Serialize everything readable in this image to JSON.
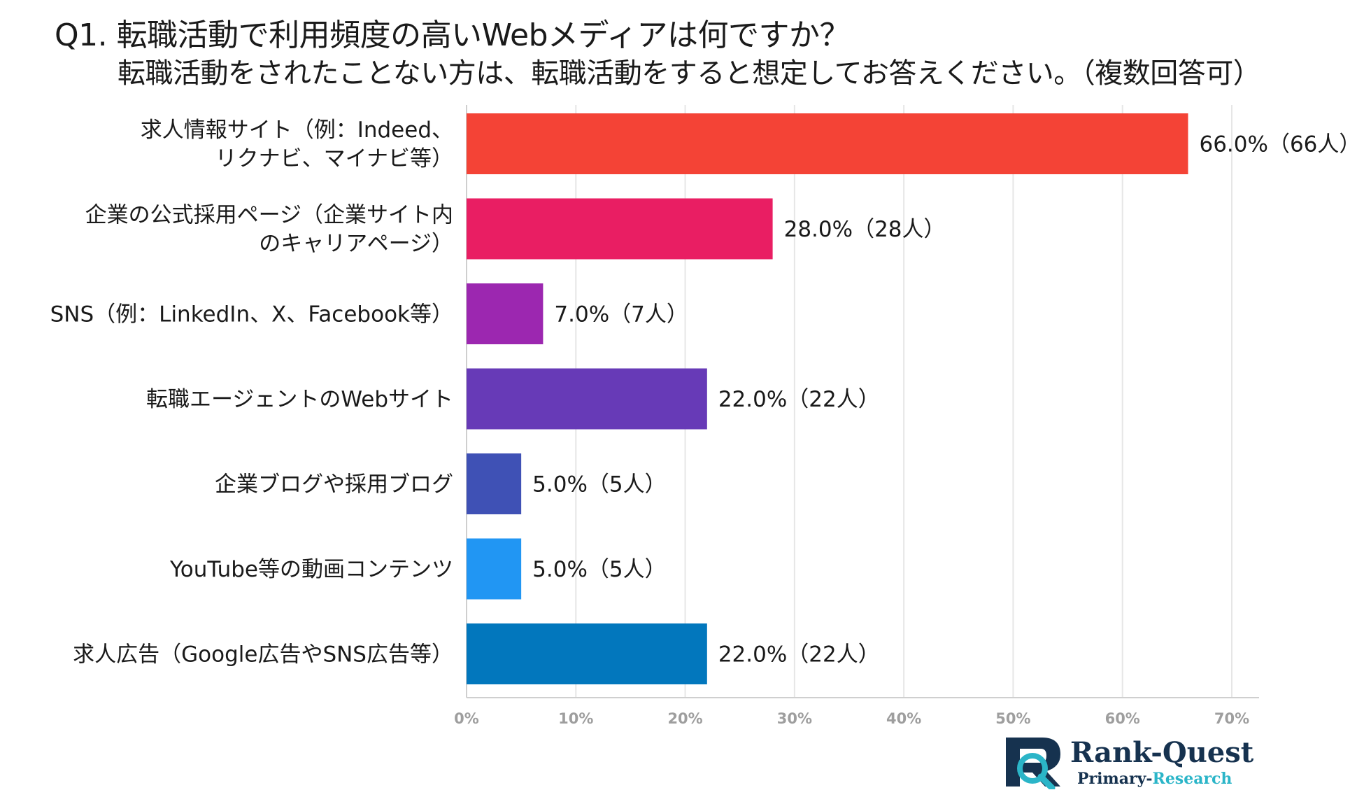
{
  "title": {
    "line1": "Q1. 転職活動で利用頻度の高いWebメディアは何ですか？",
    "line2": "転職活動をされたことない方は、転職活動をすると想定してお答えください。（複数回答可）"
  },
  "chart_data": {
    "type": "bar",
    "orientation": "horizontal",
    "categories": [
      [
        "求人情報サイト（例：Indeed、",
        "リクナビ、マイナビ等）"
      ],
      [
        "企業の公式採用ページ（企業サイト内",
        "のキャリアページ）"
      ],
      [
        "SNS（例：LinkedIn、X、Facebook等）"
      ],
      [
        "転職エージェントのWebサイト"
      ],
      [
        "企業ブログや採用ブログ"
      ],
      [
        "YouTube等の動画コンテンツ"
      ],
      [
        "求人広告（Google広告やSNS広告等）"
      ]
    ],
    "values": [
      66.0,
      28.0,
      7.0,
      22.0,
      5.0,
      5.0,
      22.0
    ],
    "value_labels": [
      "66.0%（66人）",
      "28.0%（28人）",
      "7.0%（7人）",
      "22.0%（22人）",
      "5.0%（5人）",
      "5.0%（5人）",
      "22.0%（22人）"
    ],
    "colors": [
      "#f44336",
      "#e91e63",
      "#9c27b0",
      "#673ab7",
      "#3f51b5",
      "#2196f3",
      "#0277bd"
    ],
    "xlim": [
      0,
      70
    ],
    "x_ticks": [
      0,
      10,
      20,
      30,
      40,
      50,
      60,
      70
    ],
    "x_tick_labels": [
      "0%",
      "10%",
      "20%",
      "30%",
      "40%",
      "50%",
      "60%",
      "70%"
    ],
    "grid": true,
    "xlabel": "",
    "ylabel": ""
  },
  "logo": {
    "main_part1": "Rank-",
    "main_part2": "Quest",
    "sub_part1": "Primary-",
    "sub_part2": "Research"
  }
}
